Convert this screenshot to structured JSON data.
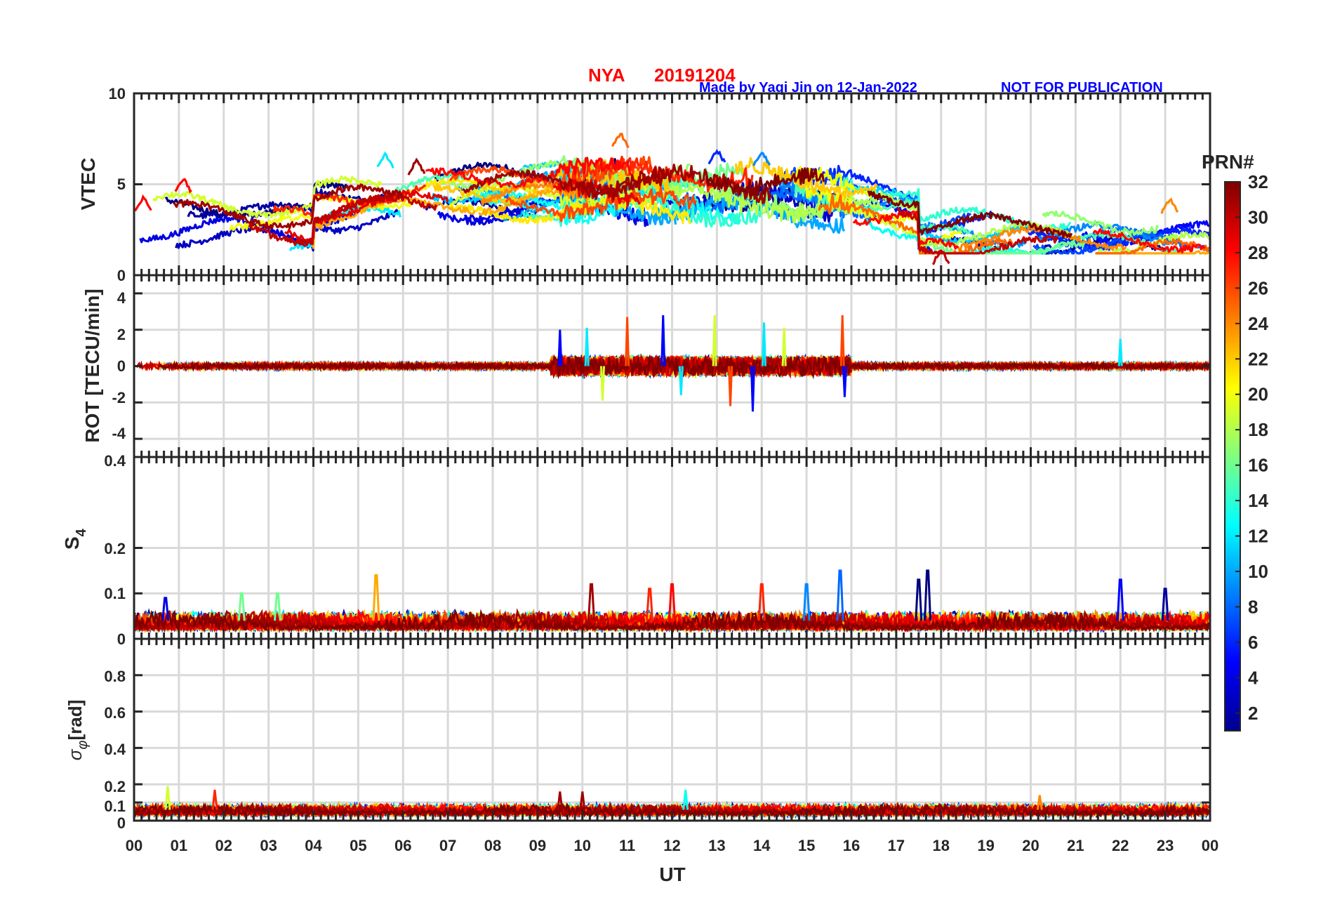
{
  "title": {
    "station": "NYA",
    "date": "20191204",
    "credit": "Made by Yaqi Jin on 12-Jan-2022",
    "notice": "NOT FOR PUBLICATION"
  },
  "colors": {
    "title": "#ff0000",
    "credit": "#0000ff",
    "axis": "#262626",
    "grid": "#d9d9d9"
  },
  "chart_data": [
    {
      "type": "line",
      "panel": "VTEC",
      "ylabel": "VTEC",
      "ylim": [
        0,
        10
      ],
      "yticks": [
        0,
        5,
        10
      ],
      "xlim": [
        0,
        24
      ],
      "series_note": "one trace per satellite PRN (1-32), colour-coded by PRN",
      "typical_range": [
        1.2,
        7.8
      ],
      "features": [
        {
          "t": 0.2,
          "prn": 28,
          "value": 4.3
        },
        {
          "t": 1.1,
          "prn": 28,
          "value": 5.3
        },
        {
          "t": 5.6,
          "prn": 12,
          "value": 6.7
        },
        {
          "t": 6.3,
          "prn": 31,
          "value": 6.3
        },
        {
          "t": 10.85,
          "prn": 25,
          "value": 7.8
        },
        {
          "t": 13.0,
          "prn": 6,
          "value": 6.9
        },
        {
          "t": 14.0,
          "prn": 9,
          "value": 6.8
        },
        {
          "t": 18.0,
          "prn": 30,
          "value": 1.4
        },
        {
          "t": 23.1,
          "prn": 24,
          "value": 4.2
        }
      ]
    },
    {
      "type": "line",
      "panel": "ROT",
      "ylabel": "ROT [TECU/min]",
      "ylim": [
        -5,
        5
      ],
      "yticks": [
        -4,
        -2,
        0,
        2,
        4
      ],
      "xlim": [
        0,
        24
      ],
      "typical_range": [
        -0.6,
        0.6
      ],
      "spikes": [
        {
          "t": 9.5,
          "value": 2.0
        },
        {
          "t": 10.1,
          "value": 2.1
        },
        {
          "t": 10.45,
          "value": -1.9
        },
        {
          "t": 11.0,
          "value": 2.7
        },
        {
          "t": 11.8,
          "value": 2.8
        },
        {
          "t": 12.2,
          "value": -1.6
        },
        {
          "t": 12.95,
          "value": 2.8
        },
        {
          "t": 13.3,
          "value": -2.2
        },
        {
          "t": 13.8,
          "value": -2.5
        },
        {
          "t": 14.05,
          "value": 2.4
        },
        {
          "t": 14.5,
          "value": 2.1
        },
        {
          "t": 15.8,
          "value": 2.8
        },
        {
          "t": 15.85,
          "value": -1.7
        },
        {
          "t": 22.0,
          "value": 1.5
        }
      ]
    },
    {
      "type": "line",
      "panel": "S4",
      "ylabel": "S4",
      "ylim": [
        0,
        0.4
      ],
      "yticks": [
        0,
        0.1,
        0.2,
        0.4
      ],
      "xlim": [
        0,
        24
      ],
      "baseline_range": [
        0.02,
        0.06
      ],
      "spikes": [
        {
          "t": 0.7,
          "prn": 4,
          "value": 0.09
        },
        {
          "t": 2.4,
          "prn": 16,
          "value": 0.1
        },
        {
          "t": 3.2,
          "prn": 16,
          "value": 0.1
        },
        {
          "t": 5.4,
          "prn": 23,
          "value": 0.14
        },
        {
          "t": 10.2,
          "prn": 31,
          "value": 0.12
        },
        {
          "t": 11.5,
          "prn": 27,
          "value": 0.11
        },
        {
          "t": 12.0,
          "prn": 28,
          "value": 0.12
        },
        {
          "t": 14.0,
          "prn": 27,
          "value": 0.12
        },
        {
          "t": 15.0,
          "prn": 9,
          "value": 0.12
        },
        {
          "t": 15.75,
          "prn": 8,
          "value": 0.15
        },
        {
          "t": 17.5,
          "prn": 1,
          "value": 0.13
        },
        {
          "t": 17.7,
          "prn": 1,
          "value": 0.15
        },
        {
          "t": 22.0,
          "prn": 5,
          "value": 0.13
        },
        {
          "t": 23.0,
          "prn": 2,
          "value": 0.11
        }
      ]
    },
    {
      "type": "line",
      "panel": "sigma_phi",
      "ylabel": "σφ [rad]",
      "ylim": [
        0,
        1
      ],
      "yticks": [
        0,
        0.1,
        0.2,
        0.4,
        0.6,
        0.8
      ],
      "xlim": [
        0,
        24
      ],
      "baseline_range": [
        0.03,
        0.09
      ],
      "spikes": [
        {
          "t": 0.75,
          "prn": 19,
          "value": 0.19
        },
        {
          "t": 1.8,
          "prn": 27,
          "value": 0.17
        },
        {
          "t": 9.5,
          "prn": 31,
          "value": 0.16
        },
        {
          "t": 10.0,
          "prn": 31,
          "value": 0.16
        },
        {
          "t": 12.3,
          "prn": 13,
          "value": 0.17
        },
        {
          "t": 20.2,
          "prn": 24,
          "value": 0.14
        }
      ]
    }
  ],
  "x_axis": {
    "label": "UT",
    "tick_labels": [
      "00",
      "01",
      "02",
      "03",
      "04",
      "05",
      "06",
      "07",
      "08",
      "09",
      "10",
      "11",
      "12",
      "13",
      "14",
      "15",
      "16",
      "17",
      "18",
      "19",
      "20",
      "21",
      "22",
      "23",
      "00"
    ]
  },
  "panel_labels": {
    "vtec": "VTEC",
    "rot": "ROT [TECU/min]",
    "s4_main": "S",
    "s4_sub": "4",
    "sigma_main": "σ",
    "sigma_sub": "φ",
    "sigma_unit": "[rad]"
  },
  "tick_labels": {
    "vtec": [
      "0",
      "5",
      "10"
    ],
    "rot": [
      "-4",
      "-2",
      "0",
      "2",
      "4"
    ],
    "s4": [
      "0",
      "0.1",
      "0.2",
      "0.4"
    ],
    "sigma": [
      "0",
      "0.1",
      "0.2",
      "0.4",
      "0.6",
      "0.8"
    ]
  },
  "colorbar": {
    "title": "PRN#",
    "min": 1,
    "max": 32,
    "colormap": "jet",
    "tick_labels": [
      "2",
      "4",
      "6",
      "8",
      "10",
      "12",
      "14",
      "16",
      "18",
      "20",
      "22",
      "24",
      "26",
      "28",
      "30",
      "32"
    ]
  }
}
